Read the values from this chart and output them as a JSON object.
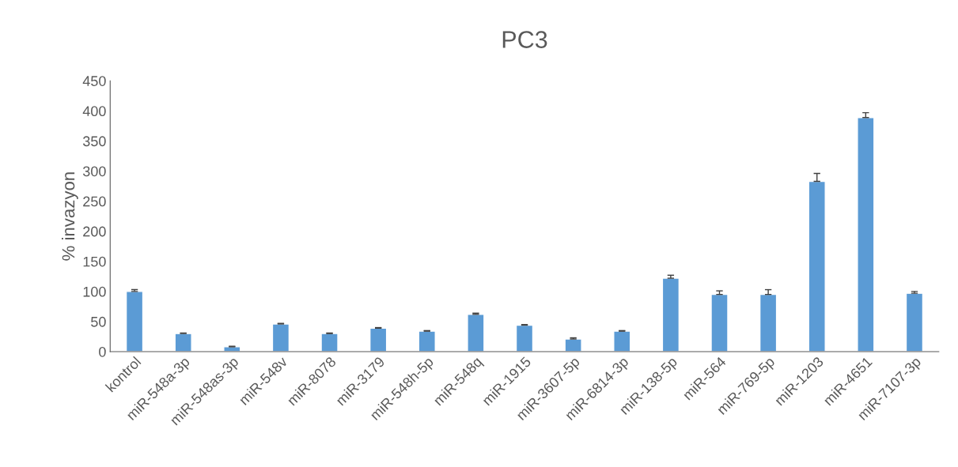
{
  "chart_data": {
    "type": "bar",
    "title": "PC3",
    "ylabel": "% invazyon",
    "categories": [
      "kontrol",
      "miR-548a-3p",
      "miR-548as-3p",
      "miR-548v",
      "miR-8078",
      "miR-3179",
      "miR-548h-5p",
      "miR-548q",
      "miR-1915",
      "miR-3607-5p",
      "miR-6814-3p",
      "miR-138-5p",
      "miR-564",
      "miR-769-5p",
      "miR-1203",
      "miR-4651",
      "miR-7107-3p"
    ],
    "values": [
      100,
      30,
      8,
      46,
      30,
      39,
      34,
      62,
      44,
      21,
      34,
      122,
      95,
      95,
      283,
      389,
      97
    ],
    "errors": [
      [
        100,
        103
      ],
      [
        30,
        31
      ],
      [
        8,
        9
      ],
      [
        46,
        47
      ],
      [
        30,
        31
      ],
      [
        39,
        40
      ],
      [
        34,
        35
      ],
      [
        62,
        64
      ],
      [
        44,
        45
      ],
      [
        21,
        23
      ],
      [
        34,
        35
      ],
      [
        122,
        127
      ],
      [
        95,
        101
      ],
      [
        95,
        103
      ],
      [
        283,
        296
      ],
      [
        389,
        397
      ],
      [
        97,
        100
      ]
    ],
    "color": "#5b9bd5",
    "ylim": [
      0,
      450
    ],
    "yticks": [
      0,
      50,
      100,
      150,
      200,
      250,
      300,
      350,
      400,
      450
    ],
    "grid": false,
    "legend": false
  }
}
